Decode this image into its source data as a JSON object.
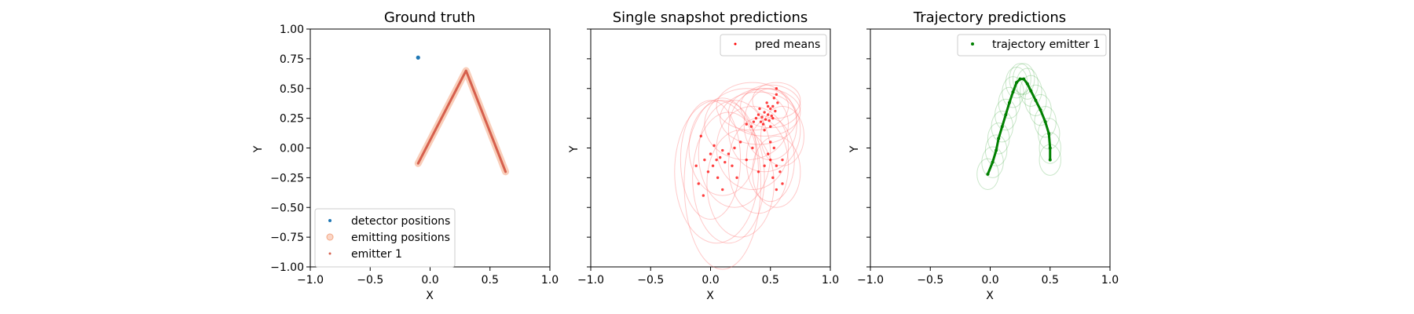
{
  "chart_data": [
    {
      "type": "scatter",
      "title": "Ground truth",
      "xlabel": "X",
      "ylabel": "Y",
      "xlim": [
        -1.0,
        1.0
      ],
      "ylim": [
        -1.0,
        1.0
      ],
      "xticks": [
        "−1.0",
        "−0.5",
        "0.0",
        "0.5",
        "1.0"
      ],
      "yticks": [
        "1.00",
        "0.75",
        "0.50",
        "0.25",
        "0.00",
        "−0.25",
        "−0.50",
        "−0.75",
        "−1.00"
      ],
      "legend_position": "lower-left",
      "series": [
        {
          "name": "detector positions",
          "color": "#1f77b4",
          "points": [
            [
              -0.1,
              0.76
            ]
          ]
        },
        {
          "name": "emitting positions",
          "color": "#f4a582",
          "path": [
            [
              -0.1,
              -0.13
            ],
            [
              0.3,
              0.65
            ],
            [
              0.63,
              -0.2
            ]
          ]
        },
        {
          "name": "emitter 1",
          "color": "#d6604d",
          "path": [
            [
              -0.1,
              -0.13
            ],
            [
              0.3,
              0.65
            ],
            [
              0.63,
              -0.2
            ]
          ]
        }
      ]
    },
    {
      "type": "scatter",
      "title": "Single snapshot predictions",
      "xlim": [
        -1.0,
        1.0
      ],
      "ylim": [
        -1.0,
        1.0
      ],
      "xlabel": "X",
      "ylabel": "Y",
      "xticks": [
        "−1.0",
        "−0.5",
        "0.0",
        "0.5",
        "1.0"
      ],
      "legend_position": "upper-right",
      "series": [
        {
          "name": "pred means",
          "color": "#ff0000",
          "points": [
            [
              0.38,
              0.25
            ],
            [
              0.42,
              0.22
            ],
            [
              0.45,
              0.3
            ],
            [
              0.48,
              0.28
            ],
            [
              0.5,
              0.33
            ],
            [
              0.52,
              0.35
            ],
            [
              0.49,
              0.23
            ],
            [
              0.44,
              0.2
            ],
            [
              0.4,
              0.28
            ],
            [
              0.47,
              0.38
            ],
            [
              0.53,
              0.42
            ],
            [
              0.55,
              0.5
            ],
            [
              0.51,
              0.27
            ],
            [
              0.46,
              0.24
            ],
            [
              0.36,
              0.22
            ],
            [
              0.3,
              0.2
            ],
            [
              0.41,
              0.33
            ],
            [
              0.54,
              0.31
            ],
            [
              0.5,
              0.18
            ],
            [
              0.43,
              0.26
            ],
            [
              0.48,
              0.35
            ],
            [
              0.52,
              0.25
            ],
            [
              0.55,
              0.45
            ],
            [
              0.34,
              0.18
            ],
            [
              0.45,
              0.15
            ],
            [
              0.56,
              0.38
            ],
            [
              0.0,
              -0.05
            ],
            [
              0.05,
              -0.1
            ],
            [
              0.1,
              -0.02
            ],
            [
              0.02,
              -0.15
            ],
            [
              0.08,
              -0.08
            ],
            [
              0.12,
              -0.12
            ],
            [
              -0.02,
              -0.2
            ],
            [
              0.15,
              -0.05
            ],
            [
              -0.05,
              -0.1
            ],
            [
              0.03,
              0.02
            ],
            [
              0.18,
              -0.15
            ],
            [
              -0.08,
              0.1
            ],
            [
              0.06,
              -0.25
            ],
            [
              -0.1,
              -0.3
            ],
            [
              0.2,
              0.0
            ],
            [
              0.1,
              -0.35
            ],
            [
              -0.12,
              -0.15
            ],
            [
              0.22,
              -0.25
            ],
            [
              -0.06,
              -0.4
            ],
            [
              0.25,
              0.05
            ],
            [
              0.5,
              -0.1
            ],
            [
              0.55,
              -0.15
            ],
            [
              0.52,
              -0.25
            ],
            [
              0.58,
              -0.2
            ],
            [
              0.6,
              -0.3
            ],
            [
              0.48,
              -0.05
            ],
            [
              0.55,
              -0.35
            ],
            [
              0.5,
              0.05
            ],
            [
              0.45,
              -0.15
            ],
            [
              0.6,
              -0.1
            ],
            [
              0.4,
              -0.2
            ],
            [
              0.35,
              0.0
            ],
            [
              0.3,
              -0.1
            ],
            [
              0.53,
              0.0
            ]
          ]
        }
      ],
      "ellipses": [
        {
          "cx": 0.1,
          "cy": -0.3,
          "rx": 0.32,
          "ry": 0.72
        },
        {
          "cx": 0.05,
          "cy": -0.2,
          "rx": 0.35,
          "ry": 0.6
        },
        {
          "cx": 0.15,
          "cy": -0.25,
          "rx": 0.3,
          "ry": 0.55
        },
        {
          "cx": 0.0,
          "cy": -0.1,
          "rx": 0.25,
          "ry": 0.5
        },
        {
          "cx": 0.2,
          "cy": -0.05,
          "rx": 0.3,
          "ry": 0.45
        },
        {
          "cx": 0.1,
          "cy": 0.0,
          "rx": 0.28,
          "ry": 0.4
        },
        {
          "cx": 0.45,
          "cy": 0.3,
          "rx": 0.3,
          "ry": 0.2
        },
        {
          "cx": 0.5,
          "cy": 0.35,
          "rx": 0.25,
          "ry": 0.18
        },
        {
          "cx": 0.4,
          "cy": 0.25,
          "rx": 0.32,
          "ry": 0.22
        },
        {
          "cx": 0.5,
          "cy": 0.2,
          "rx": 0.22,
          "ry": 0.3
        },
        {
          "cx": 0.35,
          "cy": 0.35,
          "rx": 0.3,
          "ry": 0.2
        },
        {
          "cx": 0.55,
          "cy": 0.4,
          "rx": 0.2,
          "ry": 0.15
        },
        {
          "cx": 0.3,
          "cy": 0.2,
          "rx": 0.35,
          "ry": 0.3
        },
        {
          "cx": 0.45,
          "cy": 0.15,
          "rx": 0.3,
          "ry": 0.35
        },
        {
          "cx": 0.5,
          "cy": -0.1,
          "rx": 0.2,
          "ry": 0.35
        },
        {
          "cx": 0.55,
          "cy": -0.2,
          "rx": 0.2,
          "ry": 0.3
        },
        {
          "cx": 0.4,
          "cy": -0.15,
          "rx": 0.25,
          "ry": 0.4
        },
        {
          "cx": 0.25,
          "cy": -0.3,
          "rx": 0.28,
          "ry": 0.45
        },
        {
          "cx": 0.35,
          "cy": 0.0,
          "rx": 0.3,
          "ry": 0.35
        },
        {
          "cx": 0.6,
          "cy": 0.1,
          "rx": 0.18,
          "ry": 0.25
        }
      ]
    },
    {
      "type": "line",
      "title": "Trajectory predictions",
      "xlim": [
        -1.0,
        1.0
      ],
      "ylim": [
        -1.0,
        1.0
      ],
      "xlabel": "X",
      "ylabel": "Y",
      "xticks": [
        "−1.0",
        "−0.5",
        "0.0",
        "0.5",
        "1.0"
      ],
      "legend_position": "upper-right",
      "series": [
        {
          "name": "trajectory emitter 1",
          "color": "#008000",
          "path": [
            [
              -0.02,
              -0.22
            ],
            [
              0.02,
              -0.12
            ],
            [
              0.05,
              -0.02
            ],
            [
              0.07,
              0.08
            ],
            [
              0.1,
              0.18
            ],
            [
              0.13,
              0.28
            ],
            [
              0.16,
              0.38
            ],
            [
              0.19,
              0.47
            ],
            [
              0.22,
              0.55
            ],
            [
              0.25,
              0.58
            ],
            [
              0.28,
              0.58
            ],
            [
              0.31,
              0.54
            ],
            [
              0.34,
              0.48
            ],
            [
              0.38,
              0.4
            ],
            [
              0.42,
              0.32
            ],
            [
              0.46,
              0.22
            ],
            [
              0.49,
              0.12
            ],
            [
              0.5,
              0.0
            ],
            [
              0.5,
              -0.1
            ]
          ]
        }
      ],
      "ellipses_note": "uncertainty ellipses along trajectory",
      "ellipse_rx": 0.09,
      "ellipse_ry": 0.13
    }
  ]
}
